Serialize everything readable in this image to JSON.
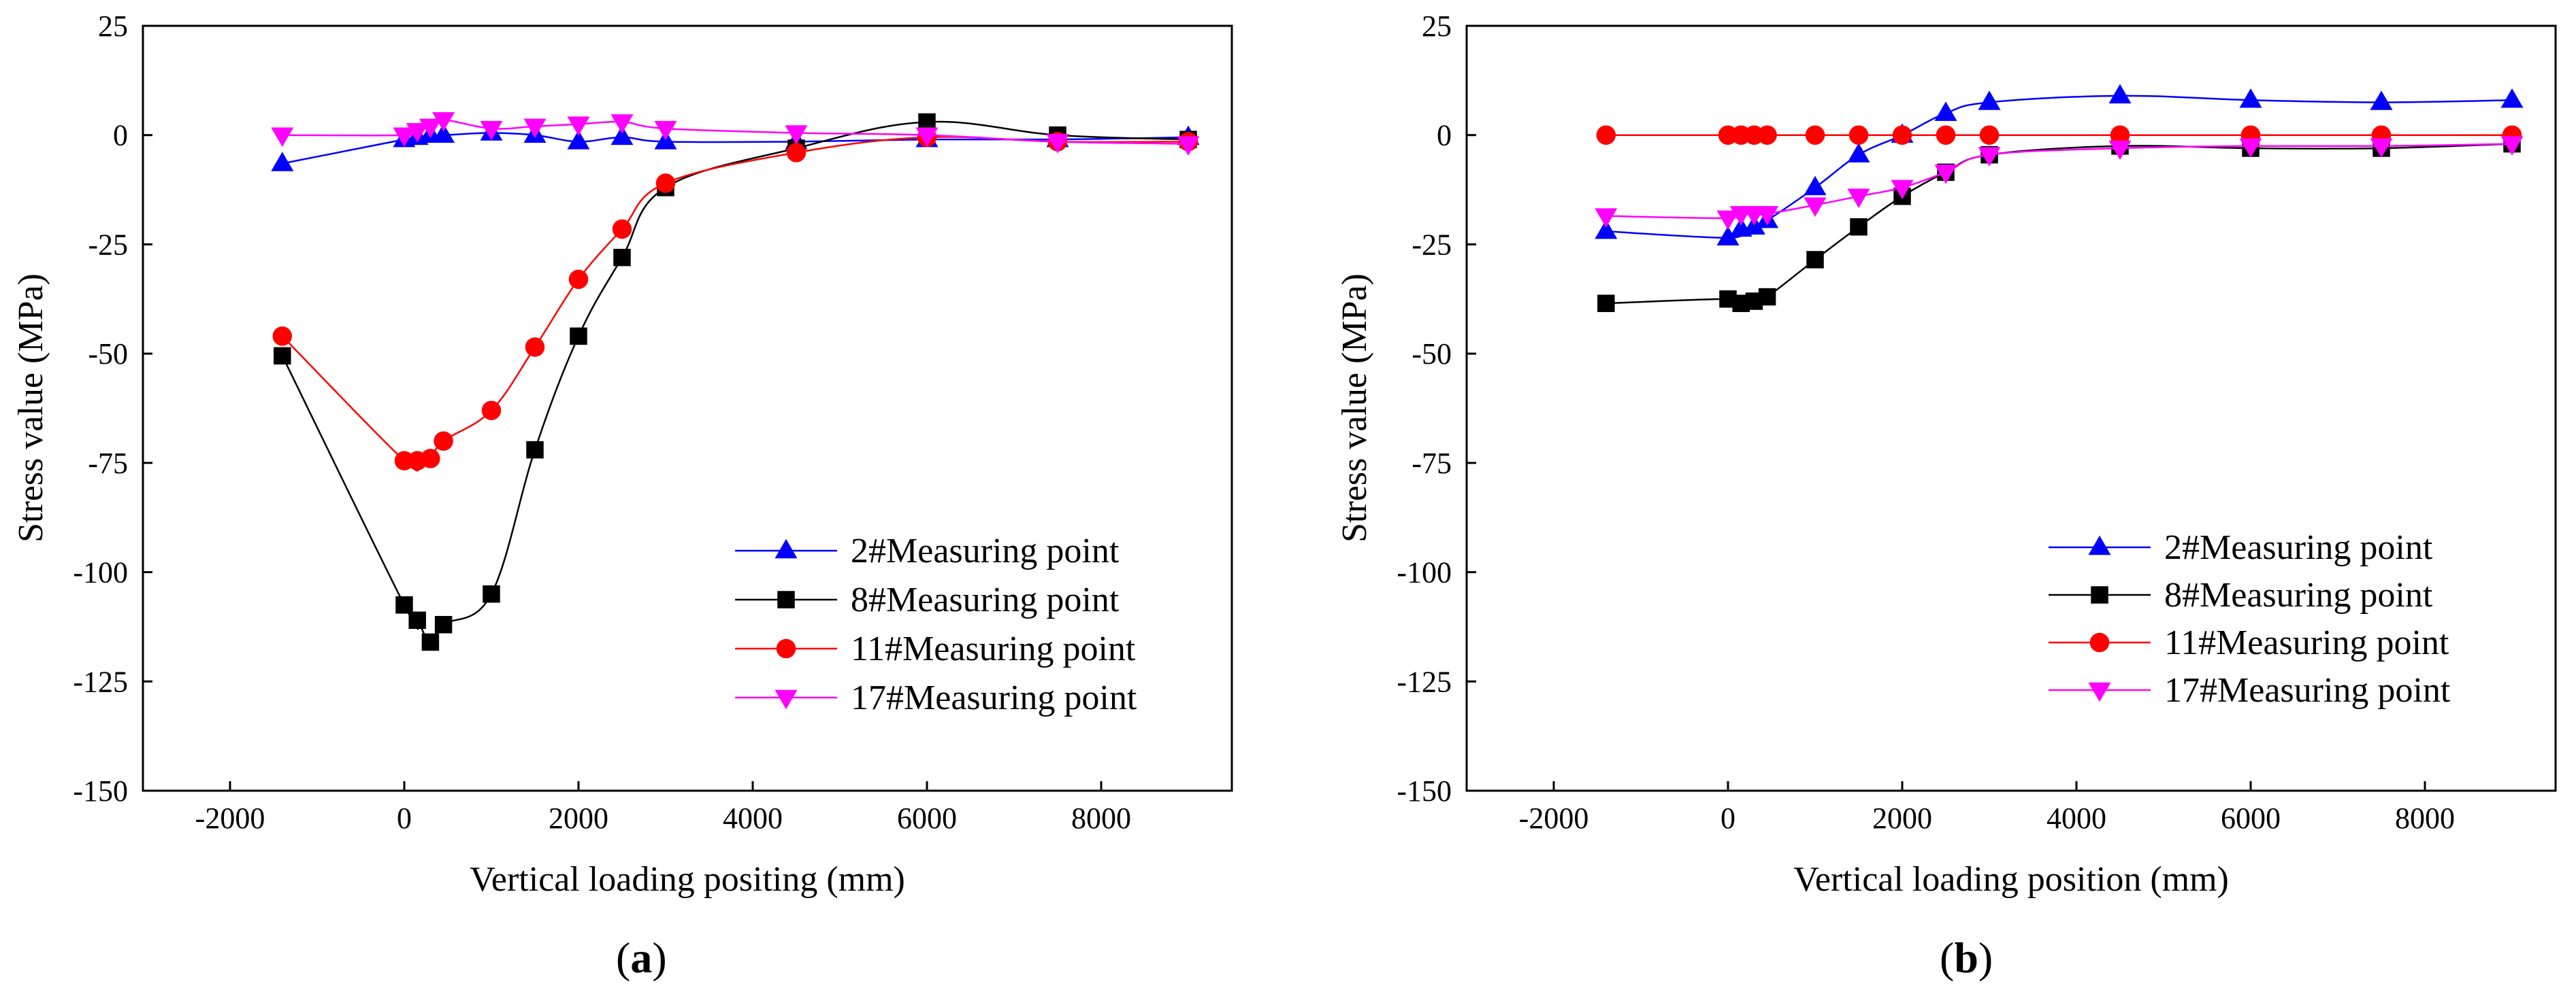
{
  "chart_data": [
    {
      "type": "line",
      "panel_label": "a",
      "xlabel": "Vertical loading positing (mm)",
      "ylabel": "Stress value (MPa)",
      "xlim": [
        -3000,
        9500
      ],
      "ylim": [
        -150,
        25
      ],
      "xticks": [
        -2000,
        0,
        2000,
        4000,
        6000,
        8000
      ],
      "yticks": [
        -150,
        -125,
        -100,
        -75,
        -50,
        -25,
        0,
        25
      ],
      "x": [
        -1400,
        0,
        150,
        300,
        450,
        1000,
        1500,
        2000,
        2500,
        3000,
        4500,
        6000,
        7500,
        9000
      ],
      "legend_position": "bottom-right",
      "series": [
        {
          "name": "2#Measuring point",
          "color": "#0000ff",
          "marker": "triangle-up",
          "values": [
            -6.5,
            -1,
            -0.5,
            0,
            0,
            0.5,
            0,
            -1.5,
            -0.5,
            -1.5,
            -1.5,
            -1,
            -1,
            -0.5
          ]
        },
        {
          "name": "8#Measuring point",
          "color": "#000000",
          "marker": "square",
          "values": [
            -50.5,
            -107.5,
            -111,
            -116,
            -112,
            -105,
            -72,
            -46,
            -28,
            -12,
            -3,
            3,
            0,
            -1
          ]
        },
        {
          "name": "11#Measuring point",
          "color": "#ff0000",
          "marker": "circle",
          "values": [
            -46,
            -74.5,
            -74.5,
            -74,
            -70,
            -63,
            -48.5,
            -33,
            -21.5,
            -11,
            -4,
            -0.5,
            -1.5,
            -1.5
          ]
        },
        {
          "name": "17#Measuring point",
          "color": "#ff00ff",
          "marker": "triangle-down",
          "values": [
            0,
            0,
            1,
            2,
            3.5,
            1.5,
            2,
            2.5,
            3,
            1.5,
            0.5,
            0,
            -1.5,
            -2
          ]
        }
      ]
    },
    {
      "type": "line",
      "panel_label": "b",
      "xlabel": "Vertical loading position (mm)",
      "ylabel": "Stress value (MPa)",
      "xlim": [
        -3000,
        9500
      ],
      "ylim": [
        -150,
        25
      ],
      "xticks": [
        -2000,
        0,
        2000,
        4000,
        6000,
        8000
      ],
      "yticks": [
        -150,
        -125,
        -100,
        -75,
        -50,
        -25,
        0,
        25
      ],
      "x": [
        -1400,
        0,
        150,
        300,
        450,
        1000,
        1500,
        2000,
        2500,
        3000,
        4500,
        6000,
        7500,
        9000
      ],
      "legend_position": "bottom-right",
      "series": [
        {
          "name": "2#Measuring point",
          "color": "#0000ff",
          "marker": "triangle-up",
          "values": [
            -22,
            -23.5,
            -21.5,
            -21,
            -19.5,
            -12,
            -4.5,
            0,
            5,
            7.5,
            9,
            8,
            7.5,
            8
          ]
        },
        {
          "name": "8#Measuring point",
          "color": "#000000",
          "marker": "square",
          "values": [
            -38.5,
            -37.5,
            -38.5,
            -38,
            -37,
            -28.5,
            -21,
            -14,
            -8.5,
            -4.5,
            -2.5,
            -3,
            -3,
            -2
          ]
        },
        {
          "name": "11#Measuring point",
          "color": "#ff0000",
          "marker": "circle",
          "values": [
            0,
            0,
            0,
            0,
            0,
            0,
            0,
            0,
            0,
            0,
            0,
            0,
            0,
            0
          ]
        },
        {
          "name": "17#Measuring point",
          "color": "#ff00ff",
          "marker": "triangle-down",
          "values": [
            -18.5,
            -19,
            -18,
            -18,
            -18,
            -16,
            -14,
            -12,
            -8.5,
            -4.5,
            -3,
            -2.5,
            -2.5,
            -2
          ]
        }
      ]
    }
  ]
}
